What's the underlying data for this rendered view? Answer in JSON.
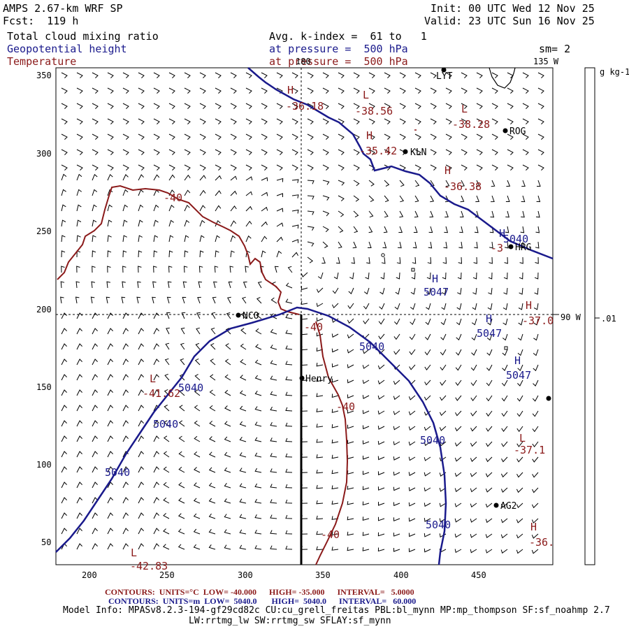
{
  "header": {
    "model": "AMPS 2.67-km WRF SP",
    "fcst": "Fcst:  119 h",
    "init": "Init: 00 UTC Wed 12 Nov 25",
    "valid": "Valid: 23 UTC Sun 16 Nov 25",
    "field1": "Total cloud mixing ratio",
    "field2": "Geopotential height",
    "field3": "Temperature",
    "avg": "Avg. k-index =  61 to   1",
    "press1": "at pressure =  500 hPa",
    "press2": "at pressure =  500 hPa",
    "sm": "sm= 2"
  },
  "axes": {
    "x_ticks": [
      "200",
      "250",
      "300",
      "350",
      "400",
      "450"
    ],
    "y_ticks": [
      "350",
      "300",
      "250",
      "200",
      "150",
      "100",
      "50"
    ],
    "lon_top_180": "180",
    "lon_top_135": "135 W",
    "lon_right_90": "90 W"
  },
  "colorbar": {
    "unit": "g kg-1",
    "value": ".01"
  },
  "stations": [
    {
      "name": "LYT"
    },
    {
      "name": "ROG"
    },
    {
      "name": "KLN"
    },
    {
      "name": "HRG"
    },
    {
      "name": "NCO"
    },
    {
      "name": "Henry"
    },
    {
      "name": "AG2"
    }
  ],
  "height_labels": [
    "5040",
    "5047",
    "5047",
    "5047",
    "5040",
    "5040",
    "5040",
    "5040",
    "5040",
    "5040"
  ],
  "temp_labels": [
    "-36.18",
    "-38.56",
    "-38.28",
    "-35.42",
    "-36.38",
    "-3",
    "-37.0",
    "-40",
    "-40",
    "-41.62",
    "-37.1",
    "-40",
    "-36.",
    "-42.83"
  ],
  "pressure_letters": [
    "H",
    "L",
    "L",
    "H",
    "H",
    "H",
    "H",
    "H",
    "H",
    "L",
    "L",
    "H",
    "L"
  ],
  "footer": {
    "contours_temp": "CONTOURS:  UNITS=°C  LOW= -40.000      HIGH= -35.000      INTERVAL=   5.0000",
    "contours_hgt": "CONTOURS:  UNITS=m  LOW=  5040.0       HIGH=  5040.0      INTERVAL=   60.000",
    "model_info": "Model Info: MPASv8.2.3-194-gf29cd82c CU:cu_grell_freitas PBL:bl_mynn MP:mp_thompson SF:sf_noahmp 2.7",
    "model_info2": "LW:rrtmg_lw SW:rrtmg_sw SFLAY:sf_mynn"
  },
  "colors": {
    "height_contour": "#1a1a8c",
    "temp_contour": "#8b1a1a",
    "wind_barb": "#000000"
  }
}
